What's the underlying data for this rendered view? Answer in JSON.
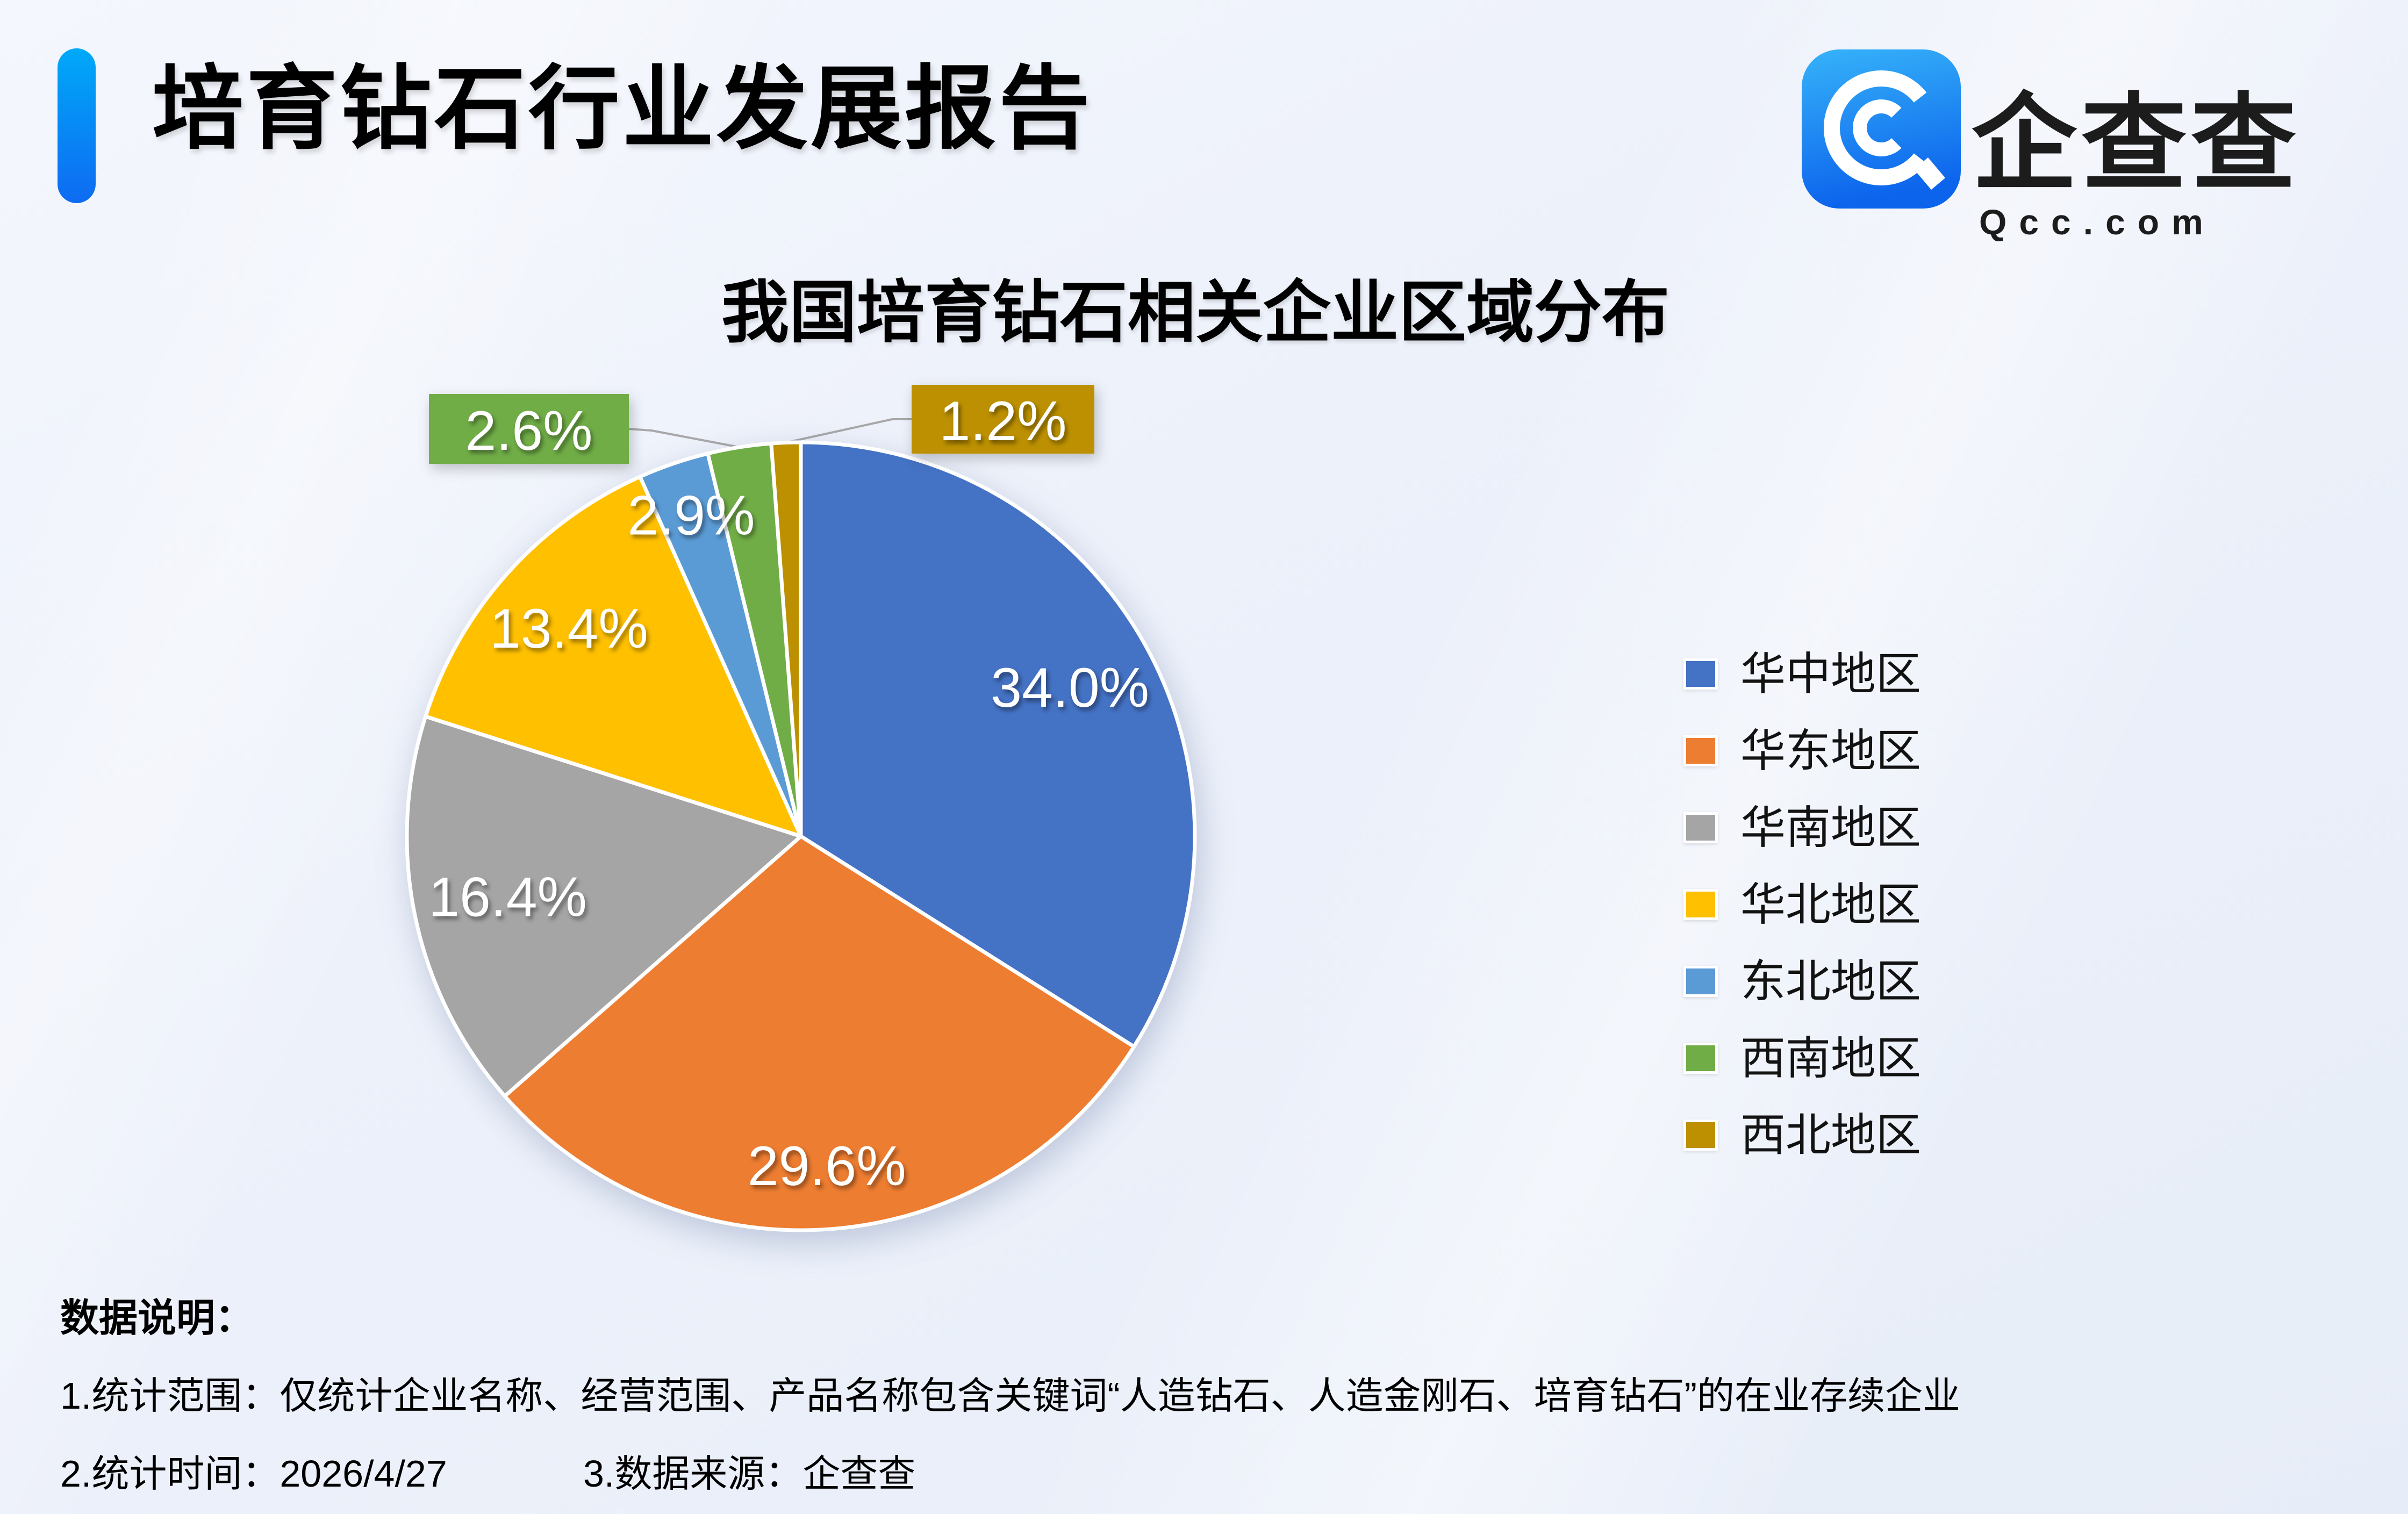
{
  "header": {
    "title": "培育钻石行业发展报告",
    "accent_color": "#0A84F6"
  },
  "logo": {
    "brand_cn": "企查查",
    "brand_en": "Qcc.com",
    "icon_color": "#1677F0"
  },
  "chart_data": {
    "type": "pie",
    "title": "我国培育钻石相关企业区域分布",
    "categories": [
      "华中地区",
      "华东地区",
      "华南地区",
      "华北地区",
      "东北地区",
      "西南地区",
      "西北地区"
    ],
    "values": [
      34.0,
      29.6,
      16.4,
      13.4,
      2.9,
      2.6,
      1.2
    ],
    "unit": "%",
    "colors": [
      "#4472C4",
      "#ED7D31",
      "#A5A5A5",
      "#FFC000",
      "#5B9BD5",
      "#70AD47",
      "#BC9000"
    ],
    "legend_position": "right",
    "label_style": "percent-one-decimal",
    "callout_labels": [
      "西南地区",
      "西北地区"
    ]
  },
  "footer": {
    "heading": "数据说明：",
    "note1": "1.统计范围：仅统计企业名称、经营范围、产品名称包含关键词“人造钻石、人造金刚石、培育钻石”的在业存续企业",
    "note2": "2.统计时间：2026/4/27",
    "note3": "3.数据来源：企查查"
  }
}
